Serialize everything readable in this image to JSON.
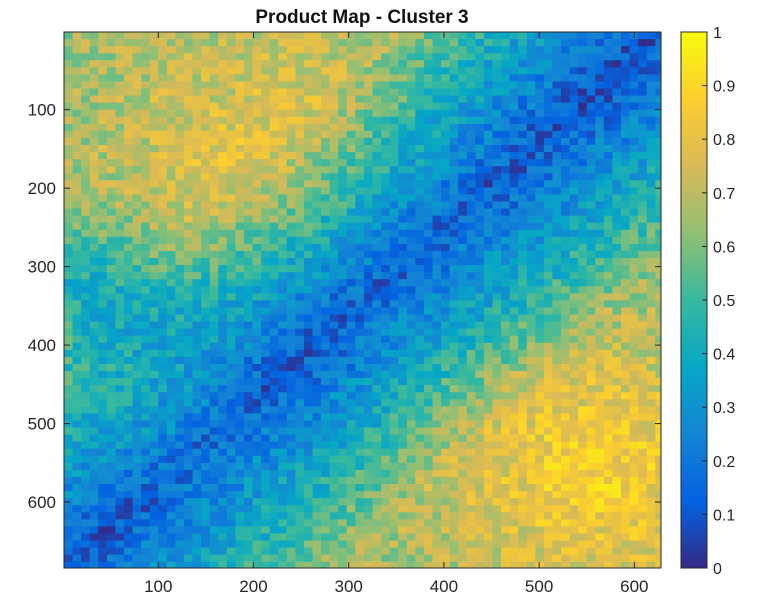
{
  "chart_data": {
    "type": "heatmap",
    "title": "Product Map - Cluster 3",
    "xlabel": "",
    "ylabel": "",
    "xlim": [
      1,
      628
    ],
    "ylim": [
      1,
      684
    ],
    "y_reversed": true,
    "x_ticks": [
      100,
      200,
      300,
      400,
      500,
      600
    ],
    "y_ticks": [
      100,
      200,
      300,
      400,
      500,
      600
    ],
    "colorbar": {
      "range": [
        0,
        1
      ],
      "ticks": [
        0,
        0.1,
        0.2,
        0.3,
        0.4,
        0.5,
        0.6,
        0.7,
        0.8,
        0.9,
        1
      ],
      "tick_labels": [
        "0",
        "0.1",
        "0.2",
        "0.3",
        "0.4",
        "0.5",
        "0.6",
        "0.7",
        "0.8",
        "0.9",
        "1"
      ],
      "colormap": "parula"
    },
    "grid": false,
    "regions": [
      {
        "name": "top-left high",
        "center": [
          220,
          170
        ],
        "value_approx": 0.55
      },
      {
        "name": "left-middle high",
        "center": [
          120,
          500
        ],
        "value_approx": 0.55
      },
      {
        "name": "bottom-right high",
        "center": [
          560,
          540
        ],
        "value_approx": 0.7
      },
      {
        "name": "diagonal low band",
        "from": [
          640,
          40
        ],
        "to": [
          80,
          684
        ],
        "value_approx": 0.08
      }
    ]
  },
  "colors": {
    "parula": [
      "#352A87",
      "#0363E1",
      "#1485D4",
      "#06A7C6",
      "#38B99E",
      "#92BF73",
      "#D9BA56",
      "#FCCE2E",
      "#F9FB0E"
    ]
  }
}
